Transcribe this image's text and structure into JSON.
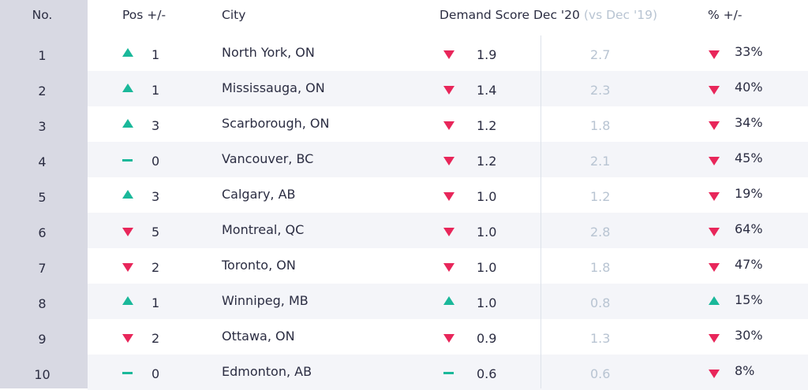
{
  "header": {
    "no": "No.",
    "pos": "Pos +/-",
    "city": "City",
    "demand": "Demand Score Dec  '20",
    "demand_sub": "(vs Dec '19)",
    "pct": "% +/-"
  },
  "rows": [
    {
      "no": "1",
      "pos_dir": "up",
      "pos": "1",
      "city": "North York, ON",
      "d_dir": "down",
      "score": "1.9",
      "prev": "2.7",
      "p_dir": "down",
      "pct": "33%"
    },
    {
      "no": "2",
      "pos_dir": "up",
      "pos": "1",
      "city": "Mississauga, ON",
      "d_dir": "down",
      "score": "1.4",
      "prev": "2.3",
      "p_dir": "down",
      "pct": "40%"
    },
    {
      "no": "3",
      "pos_dir": "up",
      "pos": "3",
      "city": "Scarborough, ON",
      "d_dir": "down",
      "score": "1.2",
      "prev": "1.8",
      "p_dir": "down",
      "pct": "34%"
    },
    {
      "no": "4",
      "pos_dir": "flat",
      "pos": "0",
      "city": "Vancouver, BC",
      "d_dir": "down",
      "score": "1.2",
      "prev": "2.1",
      "p_dir": "down",
      "pct": "45%"
    },
    {
      "no": "5",
      "pos_dir": "up",
      "pos": "3",
      "city": "Calgary, AB",
      "d_dir": "down",
      "score": "1.0",
      "prev": "1.2",
      "p_dir": "down",
      "pct": "19%"
    },
    {
      "no": "6",
      "pos_dir": "down",
      "pos": "5",
      "city": "Montreal, QC",
      "d_dir": "down",
      "score": "1.0",
      "prev": "2.8",
      "p_dir": "down",
      "pct": "64%"
    },
    {
      "no": "7",
      "pos_dir": "down",
      "pos": "2",
      "city": "Toronto, ON",
      "d_dir": "down",
      "score": "1.0",
      "prev": "1.8",
      "p_dir": "down",
      "pct": "47%"
    },
    {
      "no": "8",
      "pos_dir": "up",
      "pos": "1",
      "city": "Winnipeg, MB",
      "d_dir": "up",
      "score": "1.0",
      "prev": "0.8",
      "p_dir": "up",
      "pct": "15%"
    },
    {
      "no": "9",
      "pos_dir": "down",
      "pos": "2",
      "city": "Ottawa, ON",
      "d_dir": "down",
      "score": "0.9",
      "prev": "1.3",
      "p_dir": "down",
      "pct": "30%"
    },
    {
      "no": "10",
      "pos_dir": "flat",
      "pos": "0",
      "city": "Edmonton, AB",
      "d_dir": "flat",
      "score": "0.6",
      "prev": "0.6",
      "p_dir": "down",
      "pct": "8%"
    }
  ],
  "colors": {
    "up": "#1ab89a",
    "down": "#e8265a",
    "muted": "#b8c4d2",
    "rank_bg": "#d8d9e3",
    "alt_bg": "#f4f5f9"
  }
}
